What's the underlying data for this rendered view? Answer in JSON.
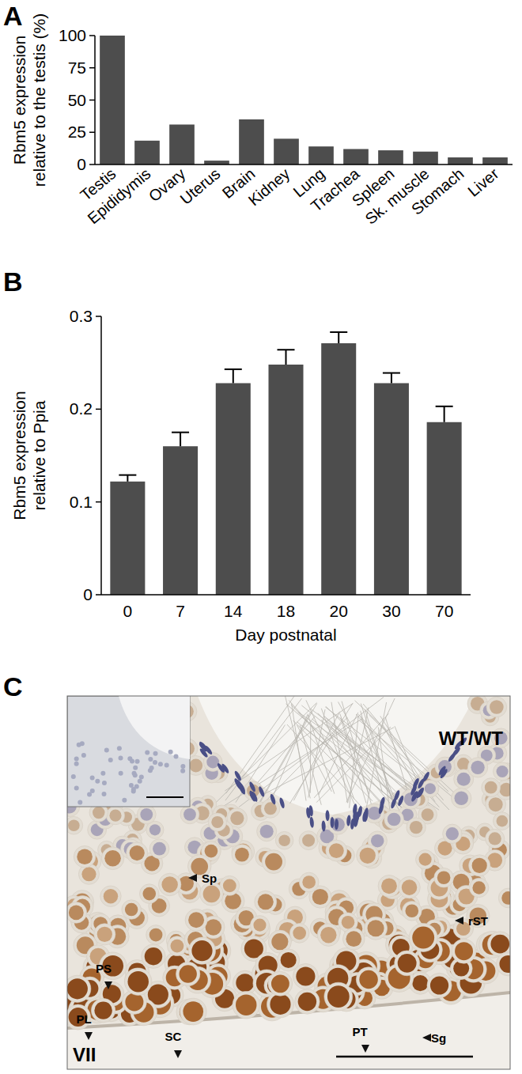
{
  "chart_data": [
    {
      "type": "bar",
      "panel": "A",
      "y_label": [
        "Rbm5 expression",
        "relative to the testis (%)"
      ],
      "categories": [
        "Testis",
        "Epididymis",
        "Ovary",
        "Uterus",
        "Brain",
        "Kidney",
        "Lung",
        "Trachea",
        "Spleen",
        "Sk. muscle",
        "Stomach",
        "Liver"
      ],
      "values": [
        100,
        18.5,
        31,
        3,
        35,
        20,
        14,
        12,
        11,
        10,
        5.5,
        5.5
      ],
      "color": "#4d4d4d",
      "ylim": [
        0,
        100
      ],
      "yticks": [
        0,
        25,
        50,
        75,
        100
      ],
      "grid": false
    },
    {
      "type": "bar",
      "panel": "B",
      "y_label": [
        "Rbm5 expression",
        "relative to Ppia"
      ],
      "x_label": "Day postnatal",
      "categories": [
        "0",
        "7",
        "14",
        "18",
        "20",
        "30",
        "70"
      ],
      "values": [
        0.122,
        0.16,
        0.228,
        0.248,
        0.271,
        0.228,
        0.186
      ],
      "errors": [
        0.007,
        0.015,
        0.015,
        0.016,
        0.012,
        0.011,
        0.017
      ],
      "color": "#4d4d4d",
      "ylim": [
        0,
        0.3
      ],
      "yticks": [
        0,
        0.1,
        0.2,
        0.3
      ],
      "grid": false
    }
  ],
  "image": {
    "panel": "C",
    "genotype": "WT/WT",
    "stage": "VII",
    "labels": [
      "Sp",
      "rST",
      "PS",
      "PL",
      "SC",
      "PT",
      "Sg"
    ]
  }
}
